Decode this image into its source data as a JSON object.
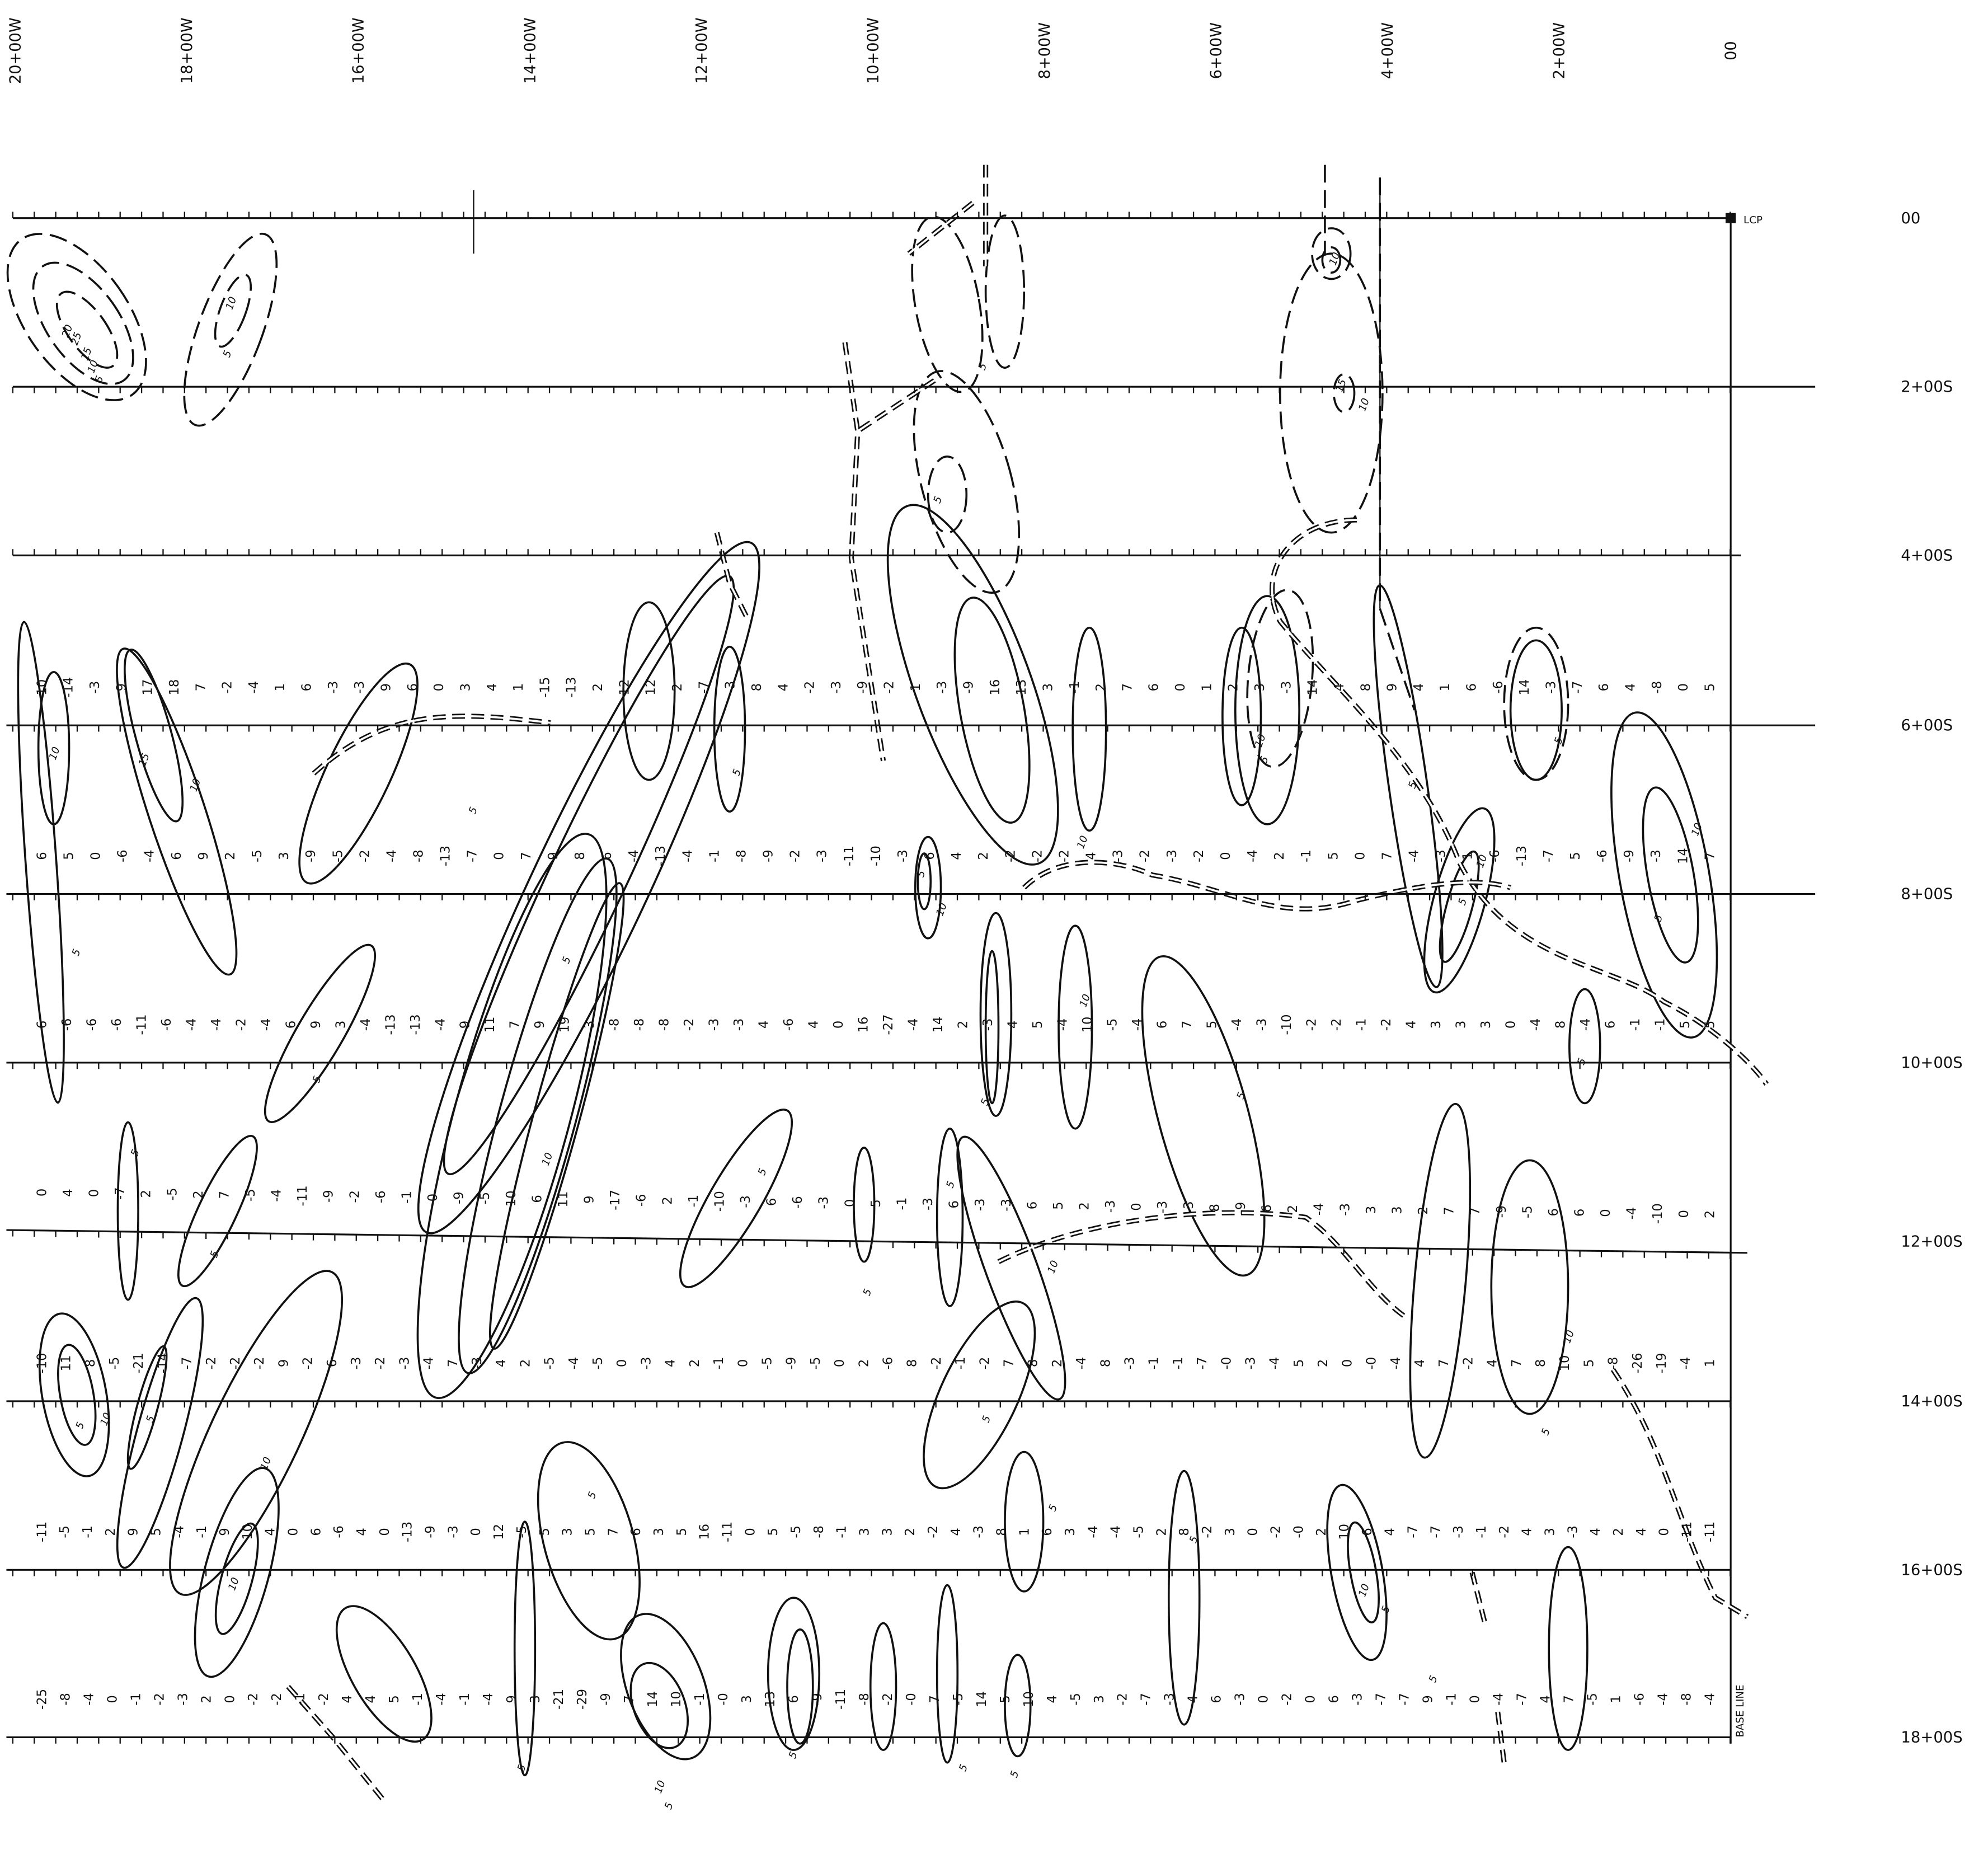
{
  "columns": [
    "20+00W",
    "18+00W",
    "16+00W",
    "14+00W",
    "12+00W",
    "10+00W",
    "8+00W",
    "6+00W",
    "4+00W",
    "2+00W",
    "00"
  ],
  "rows": [
    "00",
    "2+00S",
    "4+00S",
    "6+00S",
    "8+00S",
    "10+00S",
    "12+00S",
    "14+00S",
    "16+00S",
    "18+00S"
  ],
  "lcp": "LCP",
  "base_line": "BASE LINE",
  "readings": [
    [
      "10",
      "-14",
      "-3",
      "9",
      "17",
      "18",
      "7",
      "-2",
      "-4",
      "1",
      "6",
      "-3",
      "-3",
      "9",
      "6",
      "0",
      "3",
      "4",
      "1",
      "-15",
      "-13",
      "2",
      "12",
      "12",
      "2",
      "-7",
      "-3",
      "8",
      "4",
      "-2",
      "-3",
      "-9",
      "-2",
      "1",
      "-3",
      "-9",
      "16",
      "13",
      "3",
      "-1",
      "2",
      "7",
      "6",
      "0",
      "1",
      "2",
      "3",
      "-3",
      "14",
      "4",
      "8",
      "9",
      "4",
      "1",
      "6",
      "-6",
      "14",
      "-3",
      "-7",
      "6",
      "4",
      "-8",
      "0",
      "5"
    ],
    [
      "6",
      "5",
      "0",
      "-6",
      "-4",
      "6",
      "9",
      "2",
      "-5",
      "3",
      "-9",
      "-5",
      "-2",
      "-4",
      "-8",
      "-13",
      "-7",
      "0",
      "7",
      "9",
      "8",
      "6",
      "-4",
      "-13",
      "-4",
      "-1",
      "-8",
      "-9",
      "-2",
      "-3",
      "-11",
      "-10",
      "-3",
      "6",
      "4",
      "2",
      "-2",
      "-2",
      "-2",
      "4",
      "-3",
      "-2",
      "-3",
      "-2",
      "0",
      "-4",
      "2",
      "-1",
      "5",
      "0",
      "7",
      "-4",
      "-3",
      "1",
      "-6",
      "-13",
      "-7",
      "5",
      "-6",
      "-9",
      "-3",
      "14",
      "7"
    ],
    [
      "6",
      "-6",
      "-6",
      "-6",
      "-11",
      "-6",
      "-4",
      "-4",
      "-2",
      "-4",
      "6",
      "9",
      "3",
      "-4",
      "-13",
      "-13",
      "-4",
      "9",
      "11",
      "7",
      "9",
      "19",
      "3",
      "-8",
      "-8",
      "-8",
      "-2",
      "-3",
      "-3",
      "4",
      "-6",
      "4",
      "0",
      "16",
      "-27",
      "-4",
      "14",
      "2",
      "-3",
      "4",
      "5",
      "-4",
      "10",
      "-5",
      "-4",
      "6",
      "7",
      "5",
      "-4",
      "-3",
      "-10",
      "-2",
      "-2",
      "-1",
      "-2",
      "4",
      "3",
      "3",
      "3",
      "0",
      "-4",
      "8",
      "-4",
      "6",
      "-1",
      "-1",
      "5",
      "5"
    ],
    [
      "0",
      "4",
      "0",
      "-7",
      "2",
      "-5",
      "2",
      "7",
      "-5",
      "-4",
      "-11",
      "-9",
      "-2",
      "-6",
      "-1",
      "0",
      "-9",
      "-5",
      "10",
      "6",
      "11",
      "9",
      "-17",
      "-6",
      "2",
      "-1",
      "-10",
      "-3",
      "6",
      "-6",
      "-3",
      "0",
      "5",
      "-1",
      "-3",
      "6",
      "-3",
      "-3",
      "6",
      "5",
      "2",
      "-3",
      "0",
      "-3",
      "-3",
      "8",
      "-9",
      "6",
      "2",
      "-4",
      "-3",
      "3",
      "3",
      "2",
      "7",
      "7",
      "-9",
      "-5",
      "6",
      "6",
      "0",
      "-4",
      "-10",
      "0",
      "2"
    ],
    [
      "-10",
      "11",
      "8",
      "-5",
      "-21",
      "-14",
      "-7",
      "-2",
      "-2",
      "-2",
      "9",
      "-2",
      "6",
      "-3",
      "-2",
      "-3",
      "-4",
      "7",
      "-3",
      "4",
      "2",
      "-5",
      "-4",
      "-5",
      "0",
      "-3",
      "4",
      "2",
      "-1",
      "0",
      "-5",
      "-9",
      "-5",
      "0",
      "2",
      "-6",
      "8",
      "-2",
      "-1",
      "-2",
      "7",
      "8",
      "2",
      "-4",
      "8",
      "-3",
      "-1",
      "-1",
      "-7",
      "-0",
      "-3",
      "-4",
      "5",
      "2",
      "0",
      "-0",
      "-4",
      "4",
      "7",
      "-2",
      "4",
      "7",
      "8",
      "10",
      "5",
      "-8",
      "-26",
      "-19",
      "-4",
      "1"
    ],
    [
      "-11",
      "-5",
      "-1",
      "2",
      "9",
      "5",
      "-4",
      "-1",
      "9",
      "10",
      "4",
      "0",
      "6",
      "-6",
      "4",
      "0",
      "-13",
      "-9",
      "-3",
      "0",
      "12",
      "-5",
      "5",
      "3",
      "5",
      "7",
      "6",
      "3",
      "5",
      "16",
      "-11",
      "0",
      "5",
      "-5",
      "-8",
      "-1",
      "3",
      "3",
      "2",
      "-2",
      "4",
      "-3",
      "8",
      "1",
      "6",
      "3",
      "-4",
      "-4",
      "-5",
      "2",
      "8",
      "-2",
      "3",
      "0",
      "-2",
      "-0",
      "2",
      "10",
      "6",
      "4",
      "-7",
      "-7",
      "-3",
      "-1",
      "-2",
      "4",
      "3",
      "-3",
      "4",
      "2",
      "4",
      "0",
      "-11",
      "-11"
    ],
    [
      "-25",
      "-8",
      "-4",
      "0",
      "-1",
      "-2",
      "-3",
      "2",
      "0",
      "-2",
      "-2",
      "-1",
      "-2",
      "4",
      "4",
      "5",
      "-1",
      "-4",
      "-1",
      "-4",
      "9",
      "3",
      "-21",
      "-29",
      "-9",
      "7",
      "14",
      "10",
      "-1",
      "-0",
      "3",
      "13",
      "6",
      "-9",
      "-11",
      "-8",
      "-2",
      "-0",
      "7",
      "-5",
      "14",
      "5",
      "10",
      "4",
      "-5",
      "3",
      "-2",
      "-7",
      "-3",
      "4",
      "6",
      "-3",
      "0",
      "-2",
      "0",
      "6",
      "-3",
      "-7",
      "-7",
      "9",
      "-1",
      "0",
      "-4",
      "-7",
      "4",
      "7",
      "-5",
      "1",
      "-6",
      "-4",
      "-8",
      "-4"
    ]
  ],
  "contour_labels": [
    "20",
    "25",
    "15",
    "10",
    "5",
    "10",
    "5",
    "10",
    "5",
    "10",
    "15",
    "5",
    "10",
    "15",
    "10",
    "5",
    "5",
    "10",
    "5",
    "5",
    "5",
    "10",
    "5",
    "10",
    "5",
    "10",
    "5",
    "10",
    "5",
    "5",
    "10",
    "5",
    "5",
    "5",
    "5",
    "10",
    "5",
    "5",
    "5",
    "5",
    "5",
    "10",
    "5",
    "10",
    "5",
    "10",
    "5",
    "5",
    "10",
    "5",
    "10",
    "5",
    "5",
    "5",
    "10",
    "5",
    "10",
    "5",
    "5",
    "5",
    "5",
    "5"
  ]
}
